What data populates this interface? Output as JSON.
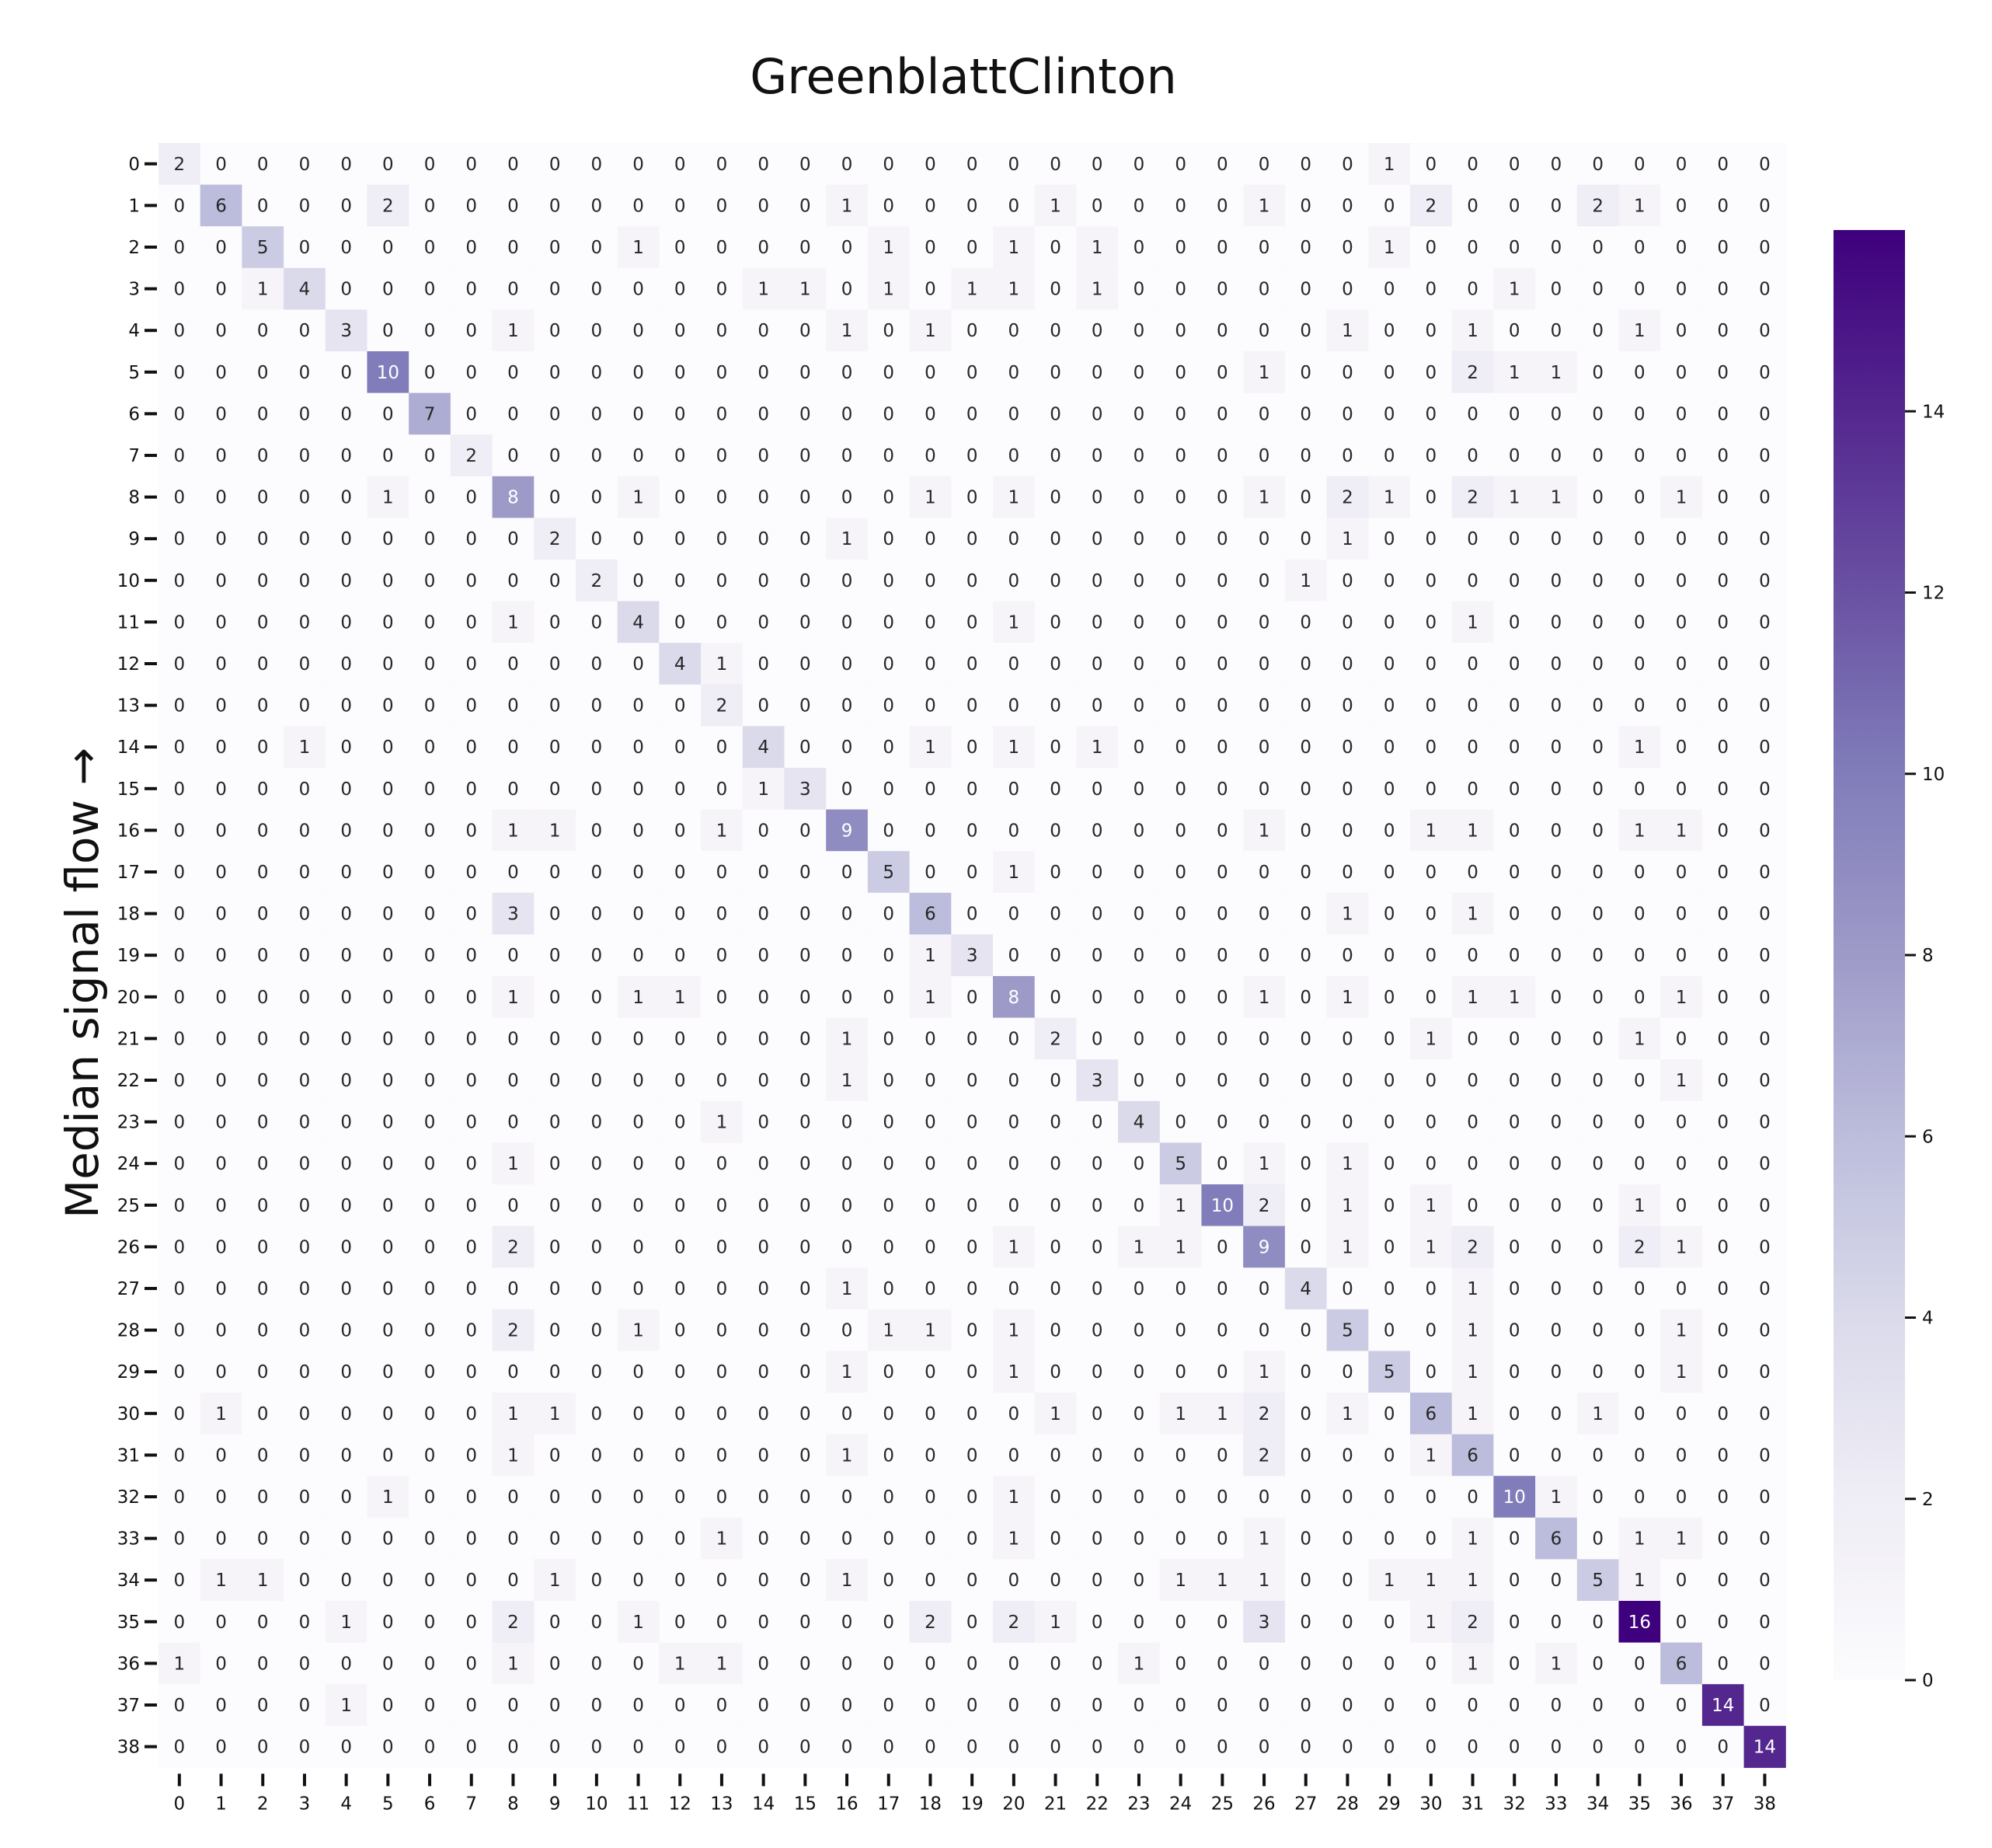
{
  "chart_data": {
    "type": "heatmap",
    "title": "GreenblattClinton",
    "ylabel": "Median signal flow →",
    "xlabel": "",
    "x_tick_labels": [
      "0",
      "1",
      "2",
      "3",
      "4",
      "5",
      "6",
      "7",
      "8",
      "9",
      "10",
      "11",
      "12",
      "13",
      "14",
      "15",
      "16",
      "17",
      "18",
      "19",
      "20",
      "21",
      "22",
      "23",
      "24",
      "25",
      "26",
      "27",
      "28",
      "29",
      "30",
      "31",
      "32",
      "33",
      "34",
      "35",
      "36",
      "37",
      "38"
    ],
    "y_tick_labels": [
      "0",
      "1",
      "2",
      "3",
      "4",
      "5",
      "6",
      "7",
      "8",
      "9",
      "10",
      "11",
      "12",
      "13",
      "14",
      "15",
      "16",
      "17",
      "18",
      "19",
      "20",
      "21",
      "22",
      "23",
      "24",
      "25",
      "26",
      "27",
      "28",
      "29",
      "30",
      "31",
      "32",
      "33",
      "34",
      "35",
      "36",
      "37",
      "38"
    ],
    "colormap": "Purples",
    "colors": {
      "low": "#fcfbfd",
      "high": "#3f007d",
      "text_dark": "#262626",
      "text_light": "#ffffff"
    },
    "colorbar": {
      "min": 0,
      "max": 16,
      "ticks": [
        0,
        2,
        4,
        6,
        8,
        10,
        12,
        14
      ]
    },
    "matrix": [
      [
        2,
        0,
        0,
        0,
        0,
        0,
        0,
        0,
        0,
        0,
        0,
        0,
        0,
        0,
        0,
        0,
        0,
        0,
        0,
        0,
        0,
        0,
        0,
        0,
        0,
        0,
        0,
        0,
        0,
        1,
        0,
        0,
        0,
        0,
        0,
        0,
        0,
        0,
        0
      ],
      [
        0,
        6,
        0,
        0,
        0,
        2,
        0,
        0,
        0,
        0,
        0,
        0,
        0,
        0,
        0,
        0,
        1,
        0,
        0,
        0,
        0,
        1,
        0,
        0,
        0,
        0,
        1,
        0,
        0,
        0,
        2,
        0,
        0,
        0,
        2,
        1,
        0,
        0,
        0
      ],
      [
        0,
        0,
        5,
        0,
        0,
        0,
        0,
        0,
        0,
        0,
        0,
        1,
        0,
        0,
        0,
        0,
        0,
        1,
        0,
        0,
        1,
        0,
        1,
        0,
        0,
        0,
        0,
        0,
        0,
        1,
        0,
        0,
        0,
        0,
        0,
        0,
        0,
        0,
        0
      ],
      [
        0,
        0,
        1,
        4,
        0,
        0,
        0,
        0,
        0,
        0,
        0,
        0,
        0,
        0,
        1,
        1,
        0,
        1,
        0,
        1,
        1,
        0,
        1,
        0,
        0,
        0,
        0,
        0,
        0,
        0,
        0,
        0,
        1,
        0,
        0,
        0,
        0,
        0,
        0
      ],
      [
        0,
        0,
        0,
        0,
        3,
        0,
        0,
        0,
        1,
        0,
        0,
        0,
        0,
        0,
        0,
        0,
        1,
        0,
        1,
        0,
        0,
        0,
        0,
        0,
        0,
        0,
        0,
        0,
        1,
        0,
        0,
        1,
        0,
        0,
        0,
        1,
        0,
        0,
        0
      ],
      [
        0,
        0,
        0,
        0,
        0,
        10,
        0,
        0,
        0,
        0,
        0,
        0,
        0,
        0,
        0,
        0,
        0,
        0,
        0,
        0,
        0,
        0,
        0,
        0,
        0,
        0,
        1,
        0,
        0,
        0,
        0,
        2,
        1,
        1,
        0,
        0,
        0,
        0,
        0
      ],
      [
        0,
        0,
        0,
        0,
        0,
        0,
        7,
        0,
        0,
        0,
        0,
        0,
        0,
        0,
        0,
        0,
        0,
        0,
        0,
        0,
        0,
        0,
        0,
        0,
        0,
        0,
        0,
        0,
        0,
        0,
        0,
        0,
        0,
        0,
        0,
        0,
        0,
        0,
        0
      ],
      [
        0,
        0,
        0,
        0,
        0,
        0,
        0,
        2,
        0,
        0,
        0,
        0,
        0,
        0,
        0,
        0,
        0,
        0,
        0,
        0,
        0,
        0,
        0,
        0,
        0,
        0,
        0,
        0,
        0,
        0,
        0,
        0,
        0,
        0,
        0,
        0,
        0,
        0,
        0
      ],
      [
        0,
        0,
        0,
        0,
        0,
        1,
        0,
        0,
        8,
        0,
        0,
        1,
        0,
        0,
        0,
        0,
        0,
        0,
        1,
        0,
        1,
        0,
        0,
        0,
        0,
        0,
        1,
        0,
        2,
        1,
        0,
        2,
        1,
        1,
        0,
        0,
        1,
        0,
        0
      ],
      [
        0,
        0,
        0,
        0,
        0,
        0,
        0,
        0,
        0,
        2,
        0,
        0,
        0,
        0,
        0,
        0,
        1,
        0,
        0,
        0,
        0,
        0,
        0,
        0,
        0,
        0,
        0,
        0,
        1,
        0,
        0,
        0,
        0,
        0,
        0,
        0,
        0,
        0,
        0
      ],
      [
        0,
        0,
        0,
        0,
        0,
        0,
        0,
        0,
        0,
        0,
        2,
        0,
        0,
        0,
        0,
        0,
        0,
        0,
        0,
        0,
        0,
        0,
        0,
        0,
        0,
        0,
        0,
        1,
        0,
        0,
        0,
        0,
        0,
        0,
        0,
        0,
        0,
        0,
        0
      ],
      [
        0,
        0,
        0,
        0,
        0,
        0,
        0,
        0,
        1,
        0,
        0,
        4,
        0,
        0,
        0,
        0,
        0,
        0,
        0,
        0,
        1,
        0,
        0,
        0,
        0,
        0,
        0,
        0,
        0,
        0,
        0,
        1,
        0,
        0,
        0,
        0,
        0,
        0,
        0
      ],
      [
        0,
        0,
        0,
        0,
        0,
        0,
        0,
        0,
        0,
        0,
        0,
        0,
        4,
        1,
        0,
        0,
        0,
        0,
        0,
        0,
        0,
        0,
        0,
        0,
        0,
        0,
        0,
        0,
        0,
        0,
        0,
        0,
        0,
        0,
        0,
        0,
        0,
        0,
        0
      ],
      [
        0,
        0,
        0,
        0,
        0,
        0,
        0,
        0,
        0,
        0,
        0,
        0,
        0,
        2,
        0,
        0,
        0,
        0,
        0,
        0,
        0,
        0,
        0,
        0,
        0,
        0,
        0,
        0,
        0,
        0,
        0,
        0,
        0,
        0,
        0,
        0,
        0,
        0,
        0
      ],
      [
        0,
        0,
        0,
        1,
        0,
        0,
        0,
        0,
        0,
        0,
        0,
        0,
        0,
        0,
        4,
        0,
        0,
        0,
        1,
        0,
        1,
        0,
        1,
        0,
        0,
        0,
        0,
        0,
        0,
        0,
        0,
        0,
        0,
        0,
        0,
        1,
        0,
        0,
        0
      ],
      [
        0,
        0,
        0,
        0,
        0,
        0,
        0,
        0,
        0,
        0,
        0,
        0,
        0,
        0,
        1,
        3,
        0,
        0,
        0,
        0,
        0,
        0,
        0,
        0,
        0,
        0,
        0,
        0,
        0,
        0,
        0,
        0,
        0,
        0,
        0,
        0,
        0,
        0,
        0
      ],
      [
        0,
        0,
        0,
        0,
        0,
        0,
        0,
        0,
        1,
        1,
        0,
        0,
        0,
        1,
        0,
        0,
        9,
        0,
        0,
        0,
        0,
        0,
        0,
        0,
        0,
        0,
        1,
        0,
        0,
        0,
        1,
        1,
        0,
        0,
        0,
        1,
        1,
        0,
        0
      ],
      [
        0,
        0,
        0,
        0,
        0,
        0,
        0,
        0,
        0,
        0,
        0,
        0,
        0,
        0,
        0,
        0,
        0,
        5,
        0,
        0,
        1,
        0,
        0,
        0,
        0,
        0,
        0,
        0,
        0,
        0,
        0,
        0,
        0,
        0,
        0,
        0,
        0,
        0,
        0
      ],
      [
        0,
        0,
        0,
        0,
        0,
        0,
        0,
        0,
        3,
        0,
        0,
        0,
        0,
        0,
        0,
        0,
        0,
        0,
        6,
        0,
        0,
        0,
        0,
        0,
        0,
        0,
        0,
        0,
        1,
        0,
        0,
        1,
        0,
        0,
        0,
        0,
        0,
        0,
        0
      ],
      [
        0,
        0,
        0,
        0,
        0,
        0,
        0,
        0,
        0,
        0,
        0,
        0,
        0,
        0,
        0,
        0,
        0,
        0,
        1,
        3,
        0,
        0,
        0,
        0,
        0,
        0,
        0,
        0,
        0,
        0,
        0,
        0,
        0,
        0,
        0,
        0,
        0,
        0,
        0
      ],
      [
        0,
        0,
        0,
        0,
        0,
        0,
        0,
        0,
        1,
        0,
        0,
        1,
        1,
        0,
        0,
        0,
        0,
        0,
        1,
        0,
        8,
        0,
        0,
        0,
        0,
        0,
        1,
        0,
        1,
        0,
        0,
        1,
        1,
        0,
        0,
        0,
        1,
        0,
        0
      ],
      [
        0,
        0,
        0,
        0,
        0,
        0,
        0,
        0,
        0,
        0,
        0,
        0,
        0,
        0,
        0,
        0,
        1,
        0,
        0,
        0,
        0,
        2,
        0,
        0,
        0,
        0,
        0,
        0,
        0,
        0,
        1,
        0,
        0,
        0,
        0,
        1,
        0,
        0,
        0
      ],
      [
        0,
        0,
        0,
        0,
        0,
        0,
        0,
        0,
        0,
        0,
        0,
        0,
        0,
        0,
        0,
        0,
        1,
        0,
        0,
        0,
        0,
        0,
        3,
        0,
        0,
        0,
        0,
        0,
        0,
        0,
        0,
        0,
        0,
        0,
        0,
        0,
        1,
        0,
        0
      ],
      [
        0,
        0,
        0,
        0,
        0,
        0,
        0,
        0,
        0,
        0,
        0,
        0,
        0,
        1,
        0,
        0,
        0,
        0,
        0,
        0,
        0,
        0,
        0,
        4,
        0,
        0,
        0,
        0,
        0,
        0,
        0,
        0,
        0,
        0,
        0,
        0,
        0,
        0,
        0
      ],
      [
        0,
        0,
        0,
        0,
        0,
        0,
        0,
        0,
        1,
        0,
        0,
        0,
        0,
        0,
        0,
        0,
        0,
        0,
        0,
        0,
        0,
        0,
        0,
        0,
        5,
        0,
        1,
        0,
        1,
        0,
        0,
        0,
        0,
        0,
        0,
        0,
        0,
        0,
        0
      ],
      [
        0,
        0,
        0,
        0,
        0,
        0,
        0,
        0,
        0,
        0,
        0,
        0,
        0,
        0,
        0,
        0,
        0,
        0,
        0,
        0,
        0,
        0,
        0,
        0,
        1,
        10,
        2,
        0,
        1,
        0,
        1,
        0,
        0,
        0,
        0,
        1,
        0,
        0,
        0
      ],
      [
        0,
        0,
        0,
        0,
        0,
        0,
        0,
        0,
        2,
        0,
        0,
        0,
        0,
        0,
        0,
        0,
        0,
        0,
        0,
        0,
        1,
        0,
        0,
        1,
        1,
        0,
        9,
        0,
        1,
        0,
        1,
        2,
        0,
        0,
        0,
        2,
        1,
        0,
        0
      ],
      [
        0,
        0,
        0,
        0,
        0,
        0,
        0,
        0,
        0,
        0,
        0,
        0,
        0,
        0,
        0,
        0,
        1,
        0,
        0,
        0,
        0,
        0,
        0,
        0,
        0,
        0,
        0,
        4,
        0,
        0,
        0,
        1,
        0,
        0,
        0,
        0,
        0,
        0,
        0
      ],
      [
        0,
        0,
        0,
        0,
        0,
        0,
        0,
        0,
        2,
        0,
        0,
        1,
        0,
        0,
        0,
        0,
        0,
        1,
        1,
        0,
        1,
        0,
        0,
        0,
        0,
        0,
        0,
        0,
        5,
        0,
        0,
        1,
        0,
        0,
        0,
        0,
        1,
        0,
        0
      ],
      [
        0,
        0,
        0,
        0,
        0,
        0,
        0,
        0,
        0,
        0,
        0,
        0,
        0,
        0,
        0,
        0,
        1,
        0,
        0,
        0,
        1,
        0,
        0,
        0,
        0,
        0,
        1,
        0,
        0,
        5,
        0,
        1,
        0,
        0,
        0,
        0,
        1,
        0,
        0
      ],
      [
        0,
        1,
        0,
        0,
        0,
        0,
        0,
        0,
        1,
        1,
        0,
        0,
        0,
        0,
        0,
        0,
        0,
        0,
        0,
        0,
        0,
        1,
        0,
        0,
        1,
        1,
        2,
        0,
        1,
        0,
        6,
        1,
        0,
        0,
        1,
        0,
        0,
        0,
        0
      ],
      [
        0,
        0,
        0,
        0,
        0,
        0,
        0,
        0,
        1,
        0,
        0,
        0,
        0,
        0,
        0,
        0,
        1,
        0,
        0,
        0,
        0,
        0,
        0,
        0,
        0,
        0,
        2,
        0,
        0,
        0,
        1,
        6,
        0,
        0,
        0,
        0,
        0,
        0,
        0
      ],
      [
        0,
        0,
        0,
        0,
        0,
        1,
        0,
        0,
        0,
        0,
        0,
        0,
        0,
        0,
        0,
        0,
        0,
        0,
        0,
        0,
        1,
        0,
        0,
        0,
        0,
        0,
        0,
        0,
        0,
        0,
        0,
        0,
        10,
        1,
        0,
        0,
        0,
        0,
        0
      ],
      [
        0,
        0,
        0,
        0,
        0,
        0,
        0,
        0,
        0,
        0,
        0,
        0,
        0,
        1,
        0,
        0,
        0,
        0,
        0,
        0,
        1,
        0,
        0,
        0,
        0,
        0,
        1,
        0,
        0,
        0,
        0,
        1,
        0,
        6,
        0,
        1,
        1,
        0,
        0
      ],
      [
        0,
        1,
        1,
        0,
        0,
        0,
        0,
        0,
        0,
        1,
        0,
        0,
        0,
        0,
        0,
        0,
        1,
        0,
        0,
        0,
        0,
        0,
        0,
        0,
        1,
        1,
        1,
        0,
        0,
        1,
        1,
        1,
        0,
        0,
        5,
        1,
        0,
        0,
        0
      ],
      [
        0,
        0,
        0,
        0,
        1,
        0,
        0,
        0,
        2,
        0,
        0,
        1,
        0,
        0,
        0,
        0,
        0,
        0,
        2,
        0,
        2,
        1,
        0,
        0,
        0,
        0,
        3,
        0,
        0,
        0,
        1,
        2,
        0,
        0,
        0,
        16,
        0,
        0,
        0
      ],
      [
        1,
        0,
        0,
        0,
        0,
        0,
        0,
        0,
        1,
        0,
        0,
        0,
        1,
        1,
        0,
        0,
        0,
        0,
        0,
        0,
        0,
        0,
        0,
        1,
        0,
        0,
        0,
        0,
        0,
        0,
        0,
        1,
        0,
        1,
        0,
        0,
        6,
        0,
        0
      ],
      [
        0,
        0,
        0,
        0,
        1,
        0,
        0,
        0,
        0,
        0,
        0,
        0,
        0,
        0,
        0,
        0,
        0,
        0,
        0,
        0,
        0,
        0,
        0,
        0,
        0,
        0,
        0,
        0,
        0,
        0,
        0,
        0,
        0,
        0,
        0,
        0,
        0,
        14,
        0
      ],
      [
        0,
        0,
        0,
        0,
        0,
        0,
        0,
        0,
        0,
        0,
        0,
        0,
        0,
        0,
        0,
        0,
        0,
        0,
        0,
        0,
        0,
        0,
        0,
        0,
        0,
        0,
        0,
        0,
        0,
        0,
        0,
        0,
        0,
        0,
        0,
        0,
        0,
        0,
        14
      ]
    ]
  }
}
